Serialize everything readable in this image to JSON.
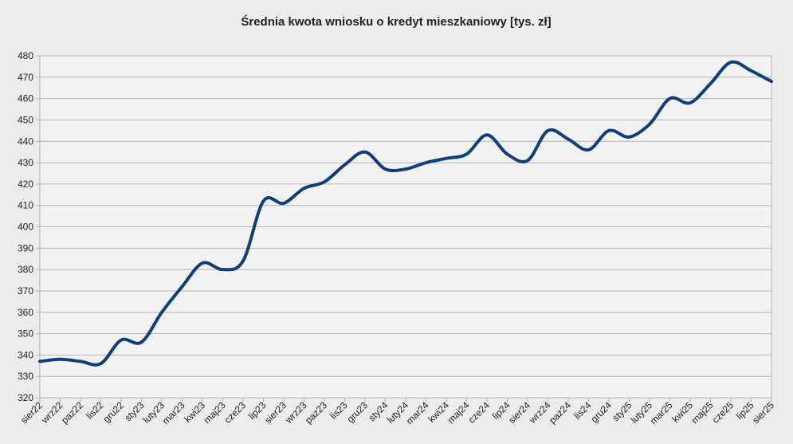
{
  "chart_data": {
    "type": "line",
    "title": "Średnia kwota wniosku o kredyt mieszkaniowy [tys. zł]",
    "categories": [
      "sier22",
      "wrz22",
      "paz22",
      "lis22",
      "gru22",
      "sty23",
      "luty23",
      "mar23",
      "kwi23",
      "maj23",
      "cze23",
      "lip23",
      "sier23",
      "wrz23",
      "paz23",
      "lis23",
      "gru23",
      "sty24",
      "luty24",
      "mar24",
      "kwi24",
      "maj24",
      "cze24",
      "lip24",
      "sier24",
      "wrz24",
      "paz24",
      "lis24",
      "gru24",
      "sty25",
      "luty25",
      "mar25",
      "kwi25",
      "maj25",
      "cze25",
      "lip25",
      "sier25"
    ],
    "series": [
      {
        "color": "#0f3f7a",
        "values": [
          337,
          338,
          337,
          336,
          347,
          346,
          360,
          372,
          383,
          380,
          384,
          412,
          411,
          418,
          421,
          429,
          435,
          427,
          427,
          430,
          432,
          434,
          443,
          434,
          431,
          445,
          441,
          436,
          445,
          442,
          448,
          460,
          458,
          467,
          477,
          473,
          468
        ]
      }
    ],
    "ylim": [
      320,
      480
    ],
    "yticks": [
      320,
      330,
      340,
      350,
      360,
      370,
      380,
      390,
      400,
      410,
      420,
      430,
      440,
      450,
      460,
      470,
      480
    ],
    "grid": true
  }
}
